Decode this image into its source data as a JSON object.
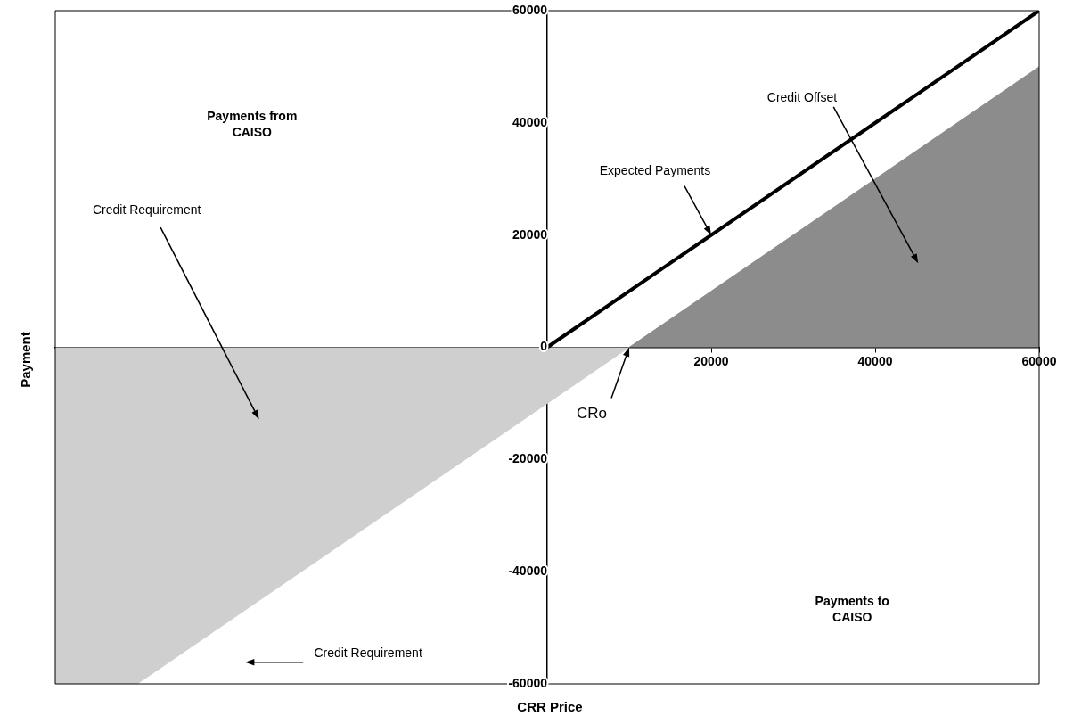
{
  "chart_data": {
    "type": "line",
    "xlabel": "CRR Price",
    "ylabel": "Payment",
    "xlim": [
      -60000,
      60000
    ],
    "xticks": [
      {
        "value": 0,
        "label": null
      },
      20000,
      40000,
      60000
    ],
    "ylim": [
      -60000,
      60000
    ],
    "yticks": [
      -60000,
      -40000,
      -20000,
      0,
      20000,
      40000,
      60000
    ],
    "grid": false,
    "legend": false,
    "marker": "none",
    "series": [
      {
        "color": "#000000",
        "x": [
          0,
          60000
        ],
        "values": [
          0,
          60000
        ]
      },
      {
        "type": "area",
        "color": "#8c8c8c",
        "x": [
          10000,
          60000
        ],
        "values": [
          0,
          50000
        ]
      },
      {
        "type": "area",
        "color": "#cfcfcf",
        "x": [
          -60000,
          -50000,
          10000
        ],
        "values": [
          -60000,
          -60000,
          0
        ]
      }
    ],
    "annotations": [
      "Payments from CAISO",
      "Payments to CAISO",
      {
        "text": "Expected Payments",
        "x": 20000,
        "y": 20000
      },
      "Credit Offset",
      "Credit Requirement",
      "Credit Requirement",
      {
        "text": "CRo",
        "x": 10000,
        "y": 0
      }
    ]
  }
}
